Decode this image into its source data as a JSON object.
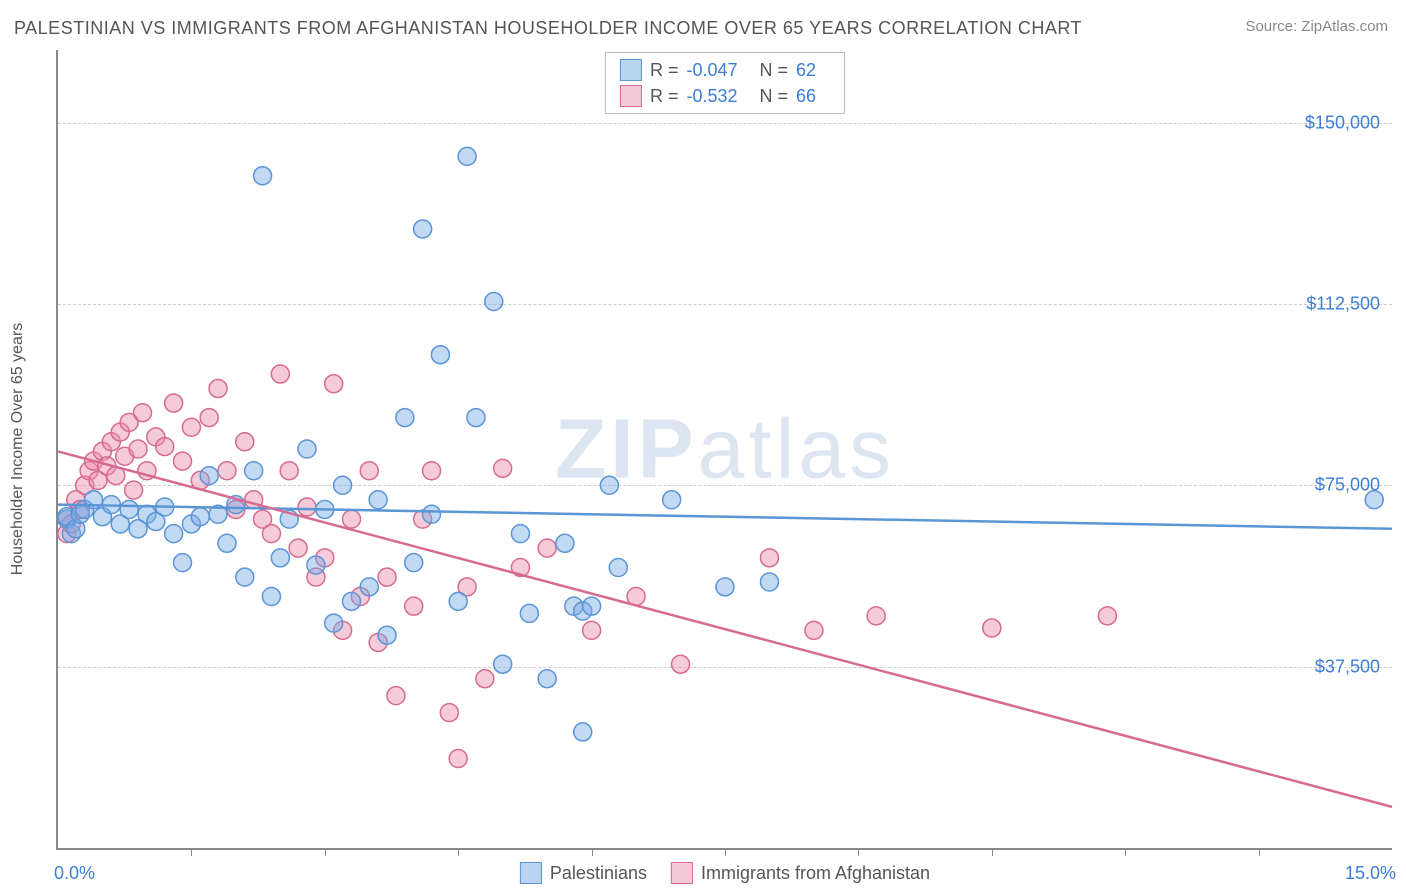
{
  "title": "PALESTINIAN VS IMMIGRANTS FROM AFGHANISTAN HOUSEHOLDER INCOME OVER 65 YEARS CORRELATION CHART",
  "source_label": "Source: ZipAtlas.com",
  "y_axis_title": "Householder Income Over 65 years",
  "watermark_bold": "ZIP",
  "watermark_light": "atlas",
  "chart": {
    "type": "scatter",
    "xlim": [
      0.0,
      15.0
    ],
    "ylim": [
      0,
      165000
    ],
    "x_min_label": "0.0%",
    "x_max_label": "15.0%",
    "x_tick_positions": [
      1.5,
      3.0,
      4.5,
      6.0,
      7.5,
      9.0,
      10.5,
      12.0,
      13.5
    ],
    "y_ticks": [
      {
        "value": 37500,
        "label": "$37,500"
      },
      {
        "value": 75000,
        "label": "$75,000"
      },
      {
        "value": 112500,
        "label": "$112,500"
      },
      {
        "value": 150000,
        "label": "$150,000"
      }
    ],
    "grid_color": "#cccccc",
    "axis_color": "#888888",
    "background_color": "#ffffff",
    "marker_radius": 9,
    "marker_stroke_width": 1.5,
    "trendline_width": 2.5,
    "label_color": "#3b7dd8",
    "title_color": "#555555",
    "title_fontsize": 18,
    "tick_fontsize": 18,
    "axis_title_fontsize": 16
  },
  "series": [
    {
      "name": "Palestinians",
      "color_fill": "rgba(120,170,230,0.45)",
      "color_stroke": "#5a95d6",
      "swatch_fill": "#b8d4f0",
      "swatch_border": "#5a95d6",
      "stats": {
        "r_label": "R =",
        "r": "-0.047",
        "n_label": "N =",
        "n": "62"
      },
      "trendline": {
        "y_at_xmin": 71000,
        "y_at_xmax": 66000
      },
      "points": [
        [
          0.1,
          68000
        ],
        [
          0.1,
          68500
        ],
        [
          0.15,
          65000
        ],
        [
          0.2,
          66000
        ],
        [
          0.25,
          69000
        ],
        [
          0.3,
          70000
        ],
        [
          0.4,
          72000
        ],
        [
          0.5,
          68500
        ],
        [
          0.6,
          71000
        ],
        [
          0.7,
          67000
        ],
        [
          0.8,
          70000
        ],
        [
          0.9,
          66000
        ],
        [
          1.0,
          69000
        ],
        [
          1.1,
          67500
        ],
        [
          1.2,
          70500
        ],
        [
          1.3,
          65000
        ],
        [
          1.4,
          59000
        ],
        [
          1.5,
          67000
        ],
        [
          1.6,
          68500
        ],
        [
          1.7,
          77000
        ],
        [
          1.8,
          69000
        ],
        [
          1.9,
          63000
        ],
        [
          2.0,
          71000
        ],
        [
          2.1,
          56000
        ],
        [
          2.2,
          78000
        ],
        [
          2.3,
          139000
        ],
        [
          2.4,
          52000
        ],
        [
          2.5,
          60000
        ],
        [
          2.6,
          68000
        ],
        [
          2.8,
          82500
        ],
        [
          2.9,
          58500
        ],
        [
          3.0,
          70000
        ],
        [
          3.1,
          46500
        ],
        [
          3.2,
          75000
        ],
        [
          3.3,
          51000
        ],
        [
          3.5,
          54000
        ],
        [
          3.6,
          72000
        ],
        [
          3.7,
          44000
        ],
        [
          3.9,
          89000
        ],
        [
          4.0,
          59000
        ],
        [
          4.1,
          128000
        ],
        [
          4.2,
          69000
        ],
        [
          4.3,
          102000
        ],
        [
          4.5,
          51000
        ],
        [
          4.6,
          143000
        ],
        [
          4.7,
          89000
        ],
        [
          4.9,
          113000
        ],
        [
          5.0,
          38000
        ],
        [
          5.2,
          65000
        ],
        [
          5.3,
          48500
        ],
        [
          5.5,
          35000
        ],
        [
          5.7,
          63000
        ],
        [
          5.8,
          50000
        ],
        [
          5.9,
          24000
        ],
        [
          5.9,
          49000
        ],
        [
          6.0,
          50000
        ],
        [
          6.2,
          75000
        ],
        [
          6.3,
          58000
        ],
        [
          6.9,
          72000
        ],
        [
          7.5,
          54000
        ],
        [
          8.0,
          55000
        ],
        [
          14.8,
          72000
        ]
      ]
    },
    {
      "name": "Immigrants from Afghanistan",
      "color_fill": "rgba(235,140,170,0.45)",
      "color_stroke": "#d66a92",
      "swatch_fill": "#f4c9d8",
      "swatch_border": "#d66a92",
      "stats": {
        "r_label": "R =",
        "r": "-0.532",
        "n_label": "N =",
        "n": "66"
      },
      "trendline": {
        "y_at_xmin": 82000,
        "y_at_xmax": 8500
      },
      "points": [
        [
          0.1,
          65000
        ],
        [
          0.1,
          68000
        ],
        [
          0.15,
          67000
        ],
        [
          0.2,
          72000
        ],
        [
          0.25,
          70000
        ],
        [
          0.3,
          75000
        ],
        [
          0.35,
          78000
        ],
        [
          0.4,
          80000
        ],
        [
          0.45,
          76000
        ],
        [
          0.5,
          82000
        ],
        [
          0.55,
          79000
        ],
        [
          0.6,
          84000
        ],
        [
          0.65,
          77000
        ],
        [
          0.7,
          86000
        ],
        [
          0.75,
          81000
        ],
        [
          0.8,
          88000
        ],
        [
          0.85,
          74000
        ],
        [
          0.9,
          82500
        ],
        [
          0.95,
          90000
        ],
        [
          1.0,
          78000
        ],
        [
          1.1,
          85000
        ],
        [
          1.2,
          83000
        ],
        [
          1.3,
          92000
        ],
        [
          1.4,
          80000
        ],
        [
          1.5,
          87000
        ],
        [
          1.6,
          76000
        ],
        [
          1.7,
          89000
        ],
        [
          1.8,
          95000
        ],
        [
          1.9,
          78000
        ],
        [
          2.0,
          70000
        ],
        [
          2.1,
          84000
        ],
        [
          2.2,
          72000
        ],
        [
          2.3,
          68000
        ],
        [
          2.4,
          65000
        ],
        [
          2.5,
          98000
        ],
        [
          2.6,
          78000
        ],
        [
          2.7,
          62000
        ],
        [
          2.8,
          70500
        ],
        [
          2.9,
          56000
        ],
        [
          3.0,
          60000
        ],
        [
          3.1,
          96000
        ],
        [
          3.2,
          45000
        ],
        [
          3.3,
          68000
        ],
        [
          3.4,
          52000
        ],
        [
          3.5,
          78000
        ],
        [
          3.6,
          42500
        ],
        [
          3.7,
          56000
        ],
        [
          3.8,
          31500
        ],
        [
          4.0,
          50000
        ],
        [
          4.1,
          68000
        ],
        [
          4.2,
          78000
        ],
        [
          4.4,
          28000
        ],
        [
          4.5,
          18500
        ],
        [
          4.6,
          54000
        ],
        [
          4.8,
          35000
        ],
        [
          5.0,
          78500
        ],
        [
          5.2,
          58000
        ],
        [
          5.5,
          62000
        ],
        [
          6.0,
          45000
        ],
        [
          6.5,
          52000
        ],
        [
          7.0,
          38000
        ],
        [
          8.0,
          60000
        ],
        [
          8.5,
          45000
        ],
        [
          9.2,
          48000
        ],
        [
          10.5,
          45500
        ],
        [
          11.8,
          48000
        ]
      ]
    }
  ],
  "legend_bottom": {
    "series1_label": "Palestinians",
    "series2_label": "Immigrants from Afghanistan"
  }
}
